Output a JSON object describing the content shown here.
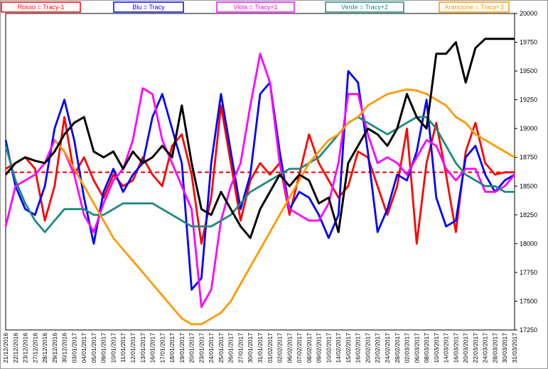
{
  "chart_data": {
    "type": "line",
    "categories": [
      "21/12/2016",
      "22/12/2016",
      "23/12/2016",
      "27/12/2016",
      "28/12/2016",
      "29/12/2016",
      "30/12/2016",
      "03/01/2017",
      "04/01/2017",
      "05/01/2017",
      "09/01/2017",
      "10/01/2017",
      "11/01/2017",
      "12/01/2017",
      "13/01/2017",
      "16/01/2017",
      "17/01/2017",
      "18/01/2017",
      "19/01/2017",
      "20/01/2017",
      "23/01/2017",
      "24/01/2017",
      "25/01/2017",
      "26/01/2017",
      "27/01/2017",
      "30/01/2017",
      "31/01/2017",
      "01/02/2017",
      "02/02/2017",
      "06/02/2017",
      "07/02/2017",
      "08/02/2017",
      "09/02/2017",
      "10/02/2017",
      "14/02/2017",
      "15/02/2017",
      "16/02/2017",
      "20/02/2017",
      "22/02/2017",
      "24/02/2017",
      "28/02/2017",
      "02/03/2017",
      "06/03/2017",
      "08/03/2017",
      "10/03/2017",
      "14/03/2017",
      "16/03/2017",
      "20/03/2017",
      "22/03/2017",
      "24/03/2017",
      "28/03/2017",
      "30/03/2017",
      "31/03/2017"
    ],
    "series": [
      {
        "name": "Rosso = Tracy-1",
        "color": "#ff0000",
        "values": [
          18650,
          18700,
          18750,
          18650,
          18200,
          18500,
          19100,
          18600,
          18750,
          18550,
          18400,
          18600,
          18500,
          18550,
          18750,
          18600,
          18500,
          18850,
          18950,
          18600,
          18000,
          18400,
          19200,
          18700,
          18200,
          18550,
          18700,
          18600,
          18700,
          18250,
          18600,
          18950,
          18700,
          18550,
          18400,
          18500,
          18800,
          18750,
          18500,
          18250,
          18500,
          19000,
          18000,
          18700,
          19050,
          18600,
          18100,
          18800,
          19050,
          18700,
          18600,
          18620,
          18620
        ]
      },
      {
        "name": "Blu = Tracy",
        "color": "#0000ff",
        "values": [
          18900,
          18500,
          18300,
          18250,
          18500,
          19000,
          19250,
          18900,
          18400,
          18000,
          18450,
          18650,
          18450,
          18600,
          18700,
          19100,
          19300,
          19000,
          18700,
          17600,
          17700,
          18700,
          19300,
          18800,
          18300,
          18600,
          19300,
          19400,
          18800,
          18300,
          18450,
          18400,
          18250,
          18050,
          18250,
          19500,
          19400,
          18800,
          18100,
          18300,
          18600,
          18550,
          18800,
          19250,
          18400,
          18150,
          18200,
          18750,
          18850,
          18600,
          18450,
          18550,
          18600
        ]
      },
      {
        "name": "Viola = Tracy+1",
        "color": "#ff00ff",
        "values": [
          18150,
          18500,
          18550,
          18600,
          18700,
          18900,
          18800,
          18600,
          18250,
          18100,
          18350,
          18550,
          18650,
          18900,
          19350,
          19300,
          18900,
          18700,
          18500,
          18300,
          17450,
          17600,
          18200,
          18500,
          18700,
          19200,
          19650,
          19400,
          18700,
          18300,
          18250,
          18200,
          18200,
          18350,
          18700,
          19300,
          19300,
          18950,
          18700,
          18750,
          18700,
          18600,
          18750,
          18900,
          18850,
          18650,
          18550,
          18650,
          18650,
          18450,
          18450,
          18500,
          18600
        ]
      },
      {
        "name": "Verde = Tracy+2",
        "color": "#1a8a80",
        "values": [
          18850,
          18550,
          18350,
          18200,
          18100,
          18200,
          18300,
          18300,
          18300,
          18250,
          18250,
          18300,
          18350,
          18350,
          18350,
          18350,
          18300,
          18250,
          18200,
          18150,
          18150,
          18150,
          18200,
          18250,
          18350,
          18450,
          18500,
          18550,
          18600,
          18650,
          18650,
          18700,
          18750,
          18850,
          18950,
          19050,
          19100,
          19050,
          19000,
          18950,
          19000,
          19050,
          19100,
          19100,
          19000,
          18850,
          18700,
          18600,
          18550,
          18500,
          18500,
          18450,
          18450
        ]
      },
      {
        "name": "Arancione = Tracy+3",
        "color": "#ff9900",
        "values": [
          null,
          null,
          null,
          null,
          null,
          18900,
          18800,
          18650,
          18500,
          18350,
          18200,
          18050,
          17950,
          17850,
          17750,
          17650,
          17550,
          17450,
          17350,
          17300,
          17300,
          17350,
          17400,
          17500,
          17650,
          17800,
          17950,
          18100,
          18250,
          18400,
          18550,
          18700,
          18800,
          18900,
          18950,
          19050,
          19100,
          19200,
          19250,
          19300,
          19320,
          19340,
          19330,
          19300,
          19250,
          19200,
          19100,
          19050,
          18950,
          18900,
          18850,
          18800,
          18750
        ]
      },
      {
        "color": "#000000",
        "values": [
          18600,
          18700,
          18750,
          18720,
          18700,
          18800,
          18950,
          19050,
          19100,
          18800,
          18750,
          18800,
          18650,
          18800,
          18700,
          18750,
          18850,
          18750,
          19200,
          18700,
          18300,
          18250,
          18450,
          18300,
          18150,
          18050,
          18300,
          18450,
          18600,
          18500,
          18600,
          18550,
          18350,
          18400,
          18100,
          18700,
          18850,
          19000,
          18950,
          18850,
          19000,
          19300,
          19100,
          19000,
          19650,
          19650,
          19750,
          19400,
          19700,
          19780,
          19780,
          19780,
          19780
        ]
      }
    ],
    "reference_line": {
      "value": 18620,
      "color": "#ff0000"
    },
    "ylim": [
      17250,
      20000
    ],
    "yticks": [
      17250,
      17500,
      17750,
      18000,
      18250,
      18500,
      18750,
      19000,
      19250,
      19500,
      19750,
      20000
    ],
    "grid": false
  }
}
